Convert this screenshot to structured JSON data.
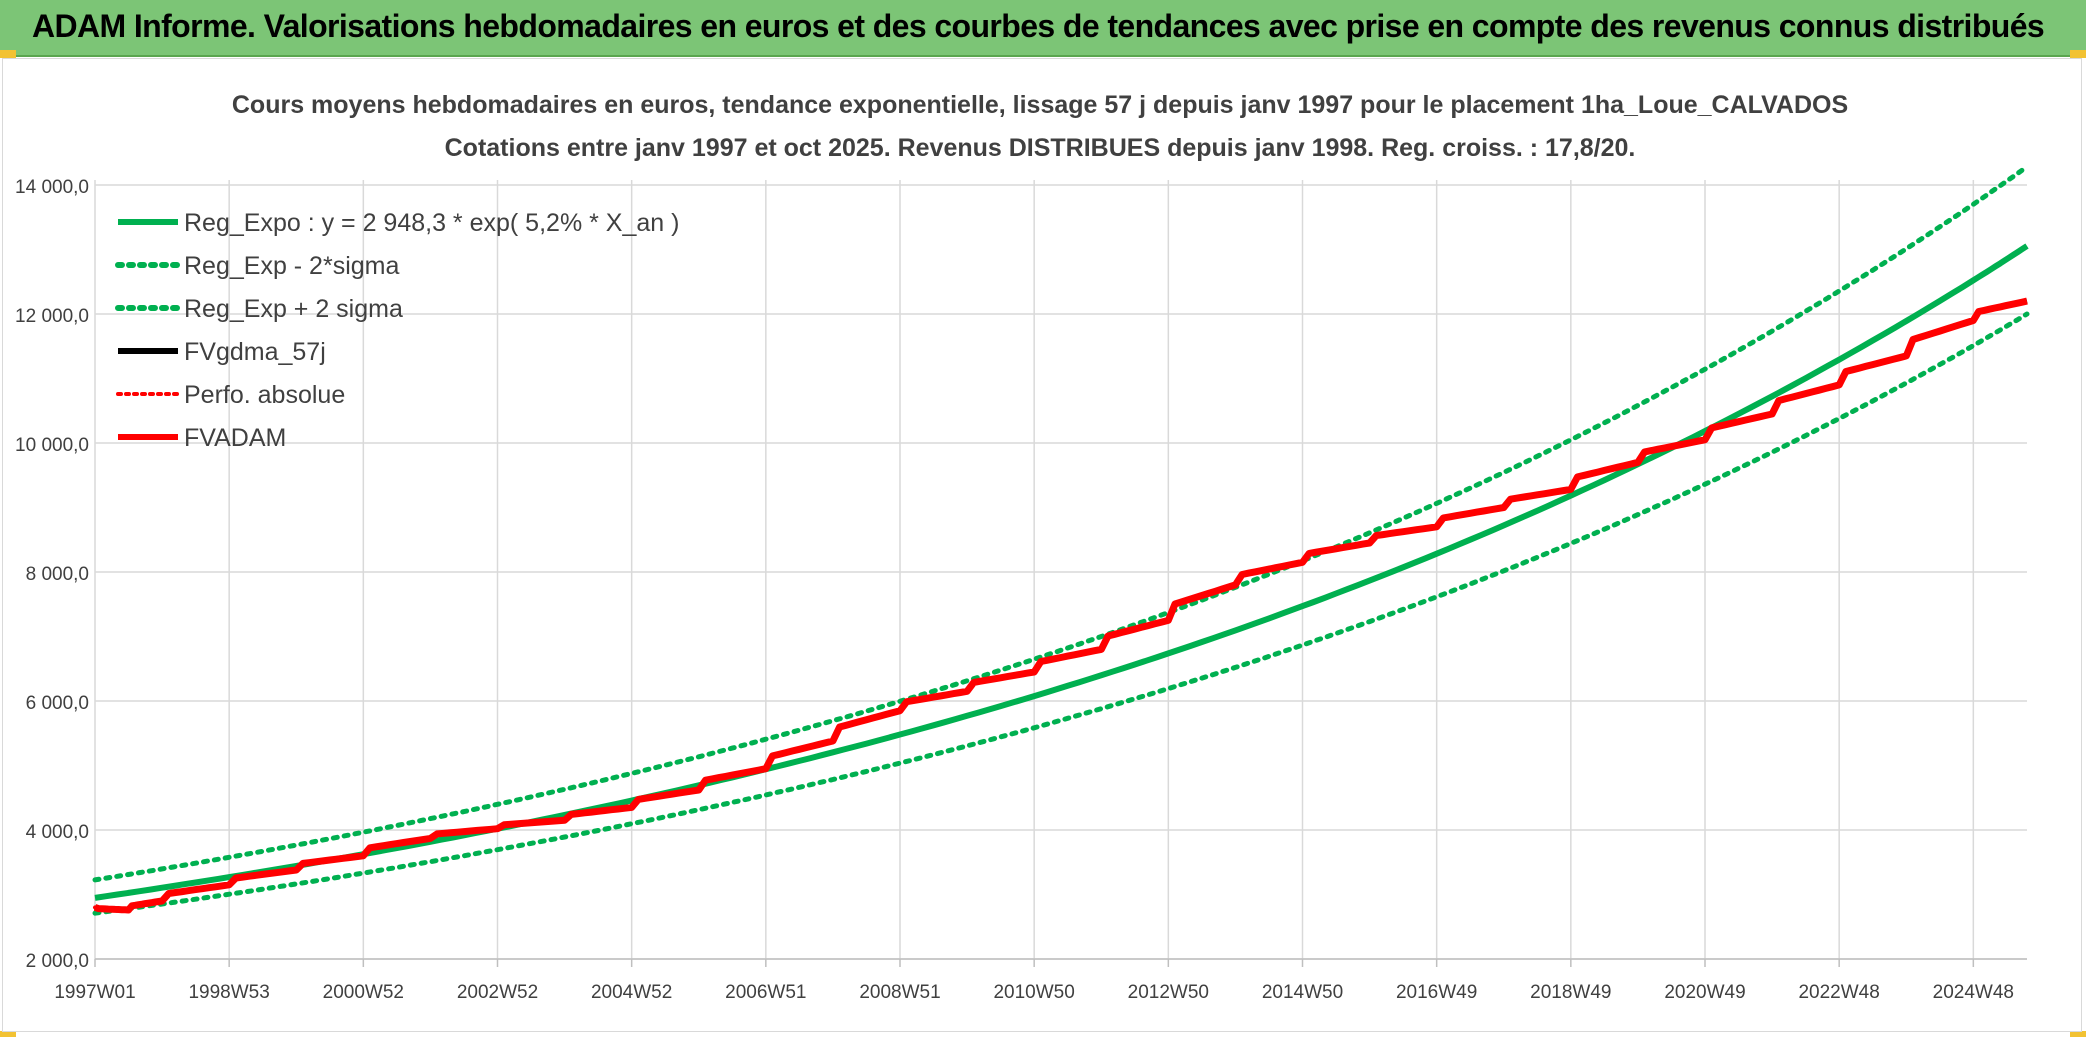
{
  "banner": {
    "title": "ADAM Informe. Valorisations hebdomadaires en euros et des courbes de tendances avec prise en compte des revenus connus distribués"
  },
  "chart_data": {
    "type": "line",
    "title": "Cours moyens hebdomadaires en euros, tendance exponentielle, lissage 57 j depuis janv 1997 pour le placement 1ha_Loue_CALVADOS",
    "subtitle": "Cotations entre janv 1997 et oct 2025. Revenus DISTRIBUES depuis janv 1998. Reg. croiss. : 17,8/20.",
    "xlabel": "",
    "ylabel": "",
    "x_range": [
      1997.0,
      2025.8
    ],
    "ylim": [
      2000,
      14000
    ],
    "y_ticks": [
      2000,
      4000,
      6000,
      8000,
      10000,
      12000,
      14000
    ],
    "y_tick_labels": [
      "2 000,0",
      "4 000,0",
      "6 000,0",
      "8 000,0",
      "10 000,0",
      "12 000,0",
      "14 000,0"
    ],
    "x_ticks": [
      1997.0,
      1999.0,
      2001.0,
      2003.0,
      2005.0,
      2007.0,
      2009.0,
      2011.0,
      2013.0,
      2015.0,
      2017.0,
      2019.0,
      2021.0,
      2023.0,
      2025.0
    ],
    "x_tick_labels": [
      "1997W01",
      "1998W53",
      "2000W52",
      "2002W52",
      "2004W52",
      "2006W51",
      "2008W51",
      "2010W50",
      "2012W50",
      "2014W50",
      "2016W49",
      "2018W49",
      "2020W49",
      "2022W48",
      "2024W48"
    ],
    "grid": true,
    "legend_position": "top-left",
    "legend": [
      "Reg_Expo : y = 2 948,3 * exp( 5,2% *  X_an )",
      "Reg_Exp - 2*sigma",
      "Reg_Exp + 2 sigma",
      "FVgdma_57j",
      "Perfo. absolue",
      "FVADAM"
    ],
    "colors": {
      "reg_expo": "#00b050",
      "sigma": "#00b050",
      "fvgdma": "#000000",
      "perfo": "#ff0000",
      "fvadam": "#ff0000",
      "grid": "#d9d9d9",
      "axis_text": "#404040",
      "title_text": "#404040"
    },
    "series": [
      {
        "name": "Reg_Expo : y = 2 948,3 * exp( 5,2% *  X_an )",
        "x": [
          1997,
          1999,
          2001,
          2003,
          2005,
          2007,
          2009,
          2011,
          2013,
          2015,
          2017,
          2019,
          2021,
          2023,
          2025,
          2025.8
        ],
        "values": [
          2948,
          3270,
          3625,
          4020,
          4457,
          4942,
          5480,
          6076,
          6738,
          7471,
          8284,
          9185,
          10184,
          11293,
          12522,
          13054
        ]
      },
      {
        "name": "Reg_Exp - 2*sigma",
        "x": [
          1997,
          1999,
          2001,
          2003,
          2005,
          2007,
          2009,
          2011,
          2013,
          2015,
          2017,
          2019,
          2021,
          2023,
          2025,
          2025.8
        ],
        "values": [
          2710,
          3004,
          3332,
          3695,
          4097,
          4543,
          5037,
          5585,
          6193,
          6867,
          7615,
          8443,
          9361,
          10380,
          11510,
          12000
        ]
      },
      {
        "name": "Reg_Exp + 2 sigma",
        "x": [
          1997,
          1999,
          2001,
          2003,
          2005,
          2007,
          2009,
          2011,
          2013,
          2015,
          2017,
          2019,
          2021,
          2023,
          2025,
          2025.8
        ],
        "values": [
          3226,
          3577,
          3966,
          4398,
          4877,
          5407,
          5996,
          6648,
          7372,
          8174,
          9064,
          10050,
          11144,
          12356,
          13701,
          14283
        ]
      },
      {
        "name": "FVgdma_57j",
        "x": [
          1997,
          1997.5,
          1998,
          1999,
          2000,
          2001,
          2002,
          2003,
          2004,
          2005,
          2006,
          2007,
          2008,
          2009,
          2010,
          2011,
          2012,
          2013,
          2014,
          2015,
          2016,
          2017,
          2018,
          2019,
          2020,
          2021,
          2022,
          2023,
          2024,
          2025,
          2025.8
        ],
        "values": [
          2800,
          2760,
          2900,
          3150,
          3380,
          3600,
          3870,
          4020,
          4150,
          4350,
          4620,
          4950,
          5380,
          5850,
          6150,
          6450,
          6800,
          7250,
          7800,
          8150,
          8450,
          8700,
          9000,
          9280,
          9700,
          10050,
          10450,
          10900,
          11350,
          11900,
          12200
        ]
      },
      {
        "name": "Perfo. absolue",
        "x": [
          1997,
          1997.5,
          1998,
          1999,
          2000,
          2001,
          2002,
          2003,
          2004,
          2005,
          2006,
          2007,
          2008,
          2009,
          2010,
          2011,
          2012,
          2013,
          2014,
          2015,
          2016,
          2017,
          2018,
          2019,
          2020,
          2021,
          2022,
          2023,
          2024,
          2025,
          2025.8
        ],
        "values": [
          2800,
          2760,
          2900,
          3150,
          3380,
          3600,
          3870,
          4020,
          4150,
          4350,
          4620,
          4950,
          5380,
          5850,
          6150,
          6450,
          6800,
          7250,
          7800,
          8150,
          8450,
          8700,
          9000,
          9280,
          9700,
          10050,
          10450,
          10900,
          11350,
          11900,
          12200
        ]
      },
      {
        "name": "FVADAM",
        "x": [
          1997,
          1997.5,
          1998,
          1999,
          2000,
          2001,
          2002,
          2003,
          2004,
          2005,
          2006,
          2007,
          2008,
          2009,
          2010,
          2011,
          2012,
          2013,
          2014,
          2015,
          2016,
          2017,
          2018,
          2019,
          2020,
          2021,
          2022,
          2023,
          2024,
          2025,
          2025.8
        ],
        "values": [
          2800,
          2760,
          2900,
          3150,
          3380,
          3600,
          3870,
          4020,
          4150,
          4350,
          4620,
          4950,
          5380,
          5850,
          6150,
          6450,
          6800,
          7250,
          7800,
          8150,
          8450,
          8700,
          9000,
          9280,
          9700,
          10050,
          10450,
          10900,
          11350,
          11900,
          12200
        ]
      }
    ]
  }
}
